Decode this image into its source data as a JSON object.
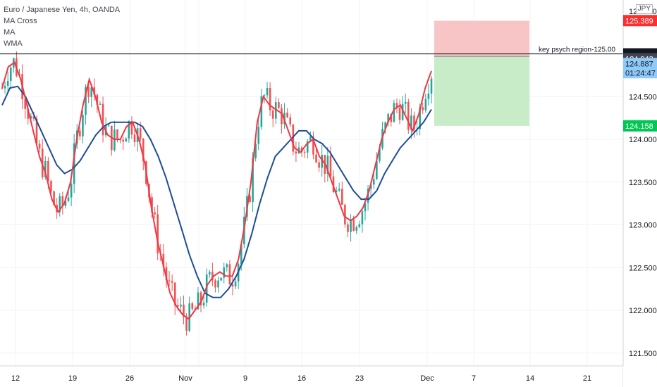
{
  "header": {
    "symbol_line": "Euro / Japanese Yen, 4h, OANDA",
    "indicators": [
      "MA Cross",
      "MA",
      "WMA"
    ]
  },
  "currency_badge": "JPY",
  "colors": {
    "up": "#26a69a",
    "down": "#ef5350",
    "ma_fast": "#f23645",
    "ma_slow": "#1e4c9a",
    "stop_zone": "#f7c5c5",
    "target_zone": "#c8ebc8"
  },
  "chart_data": {
    "type": "candlestick",
    "title": "Euro / Japanese Yen, 4h, OANDA",
    "ylim": [
      121.35,
      125.63
    ],
    "x_ticks": [
      "12",
      "19",
      "26",
      "Nov",
      "2",
      "9",
      "16",
      "23",
      "Dec",
      "7",
      "14",
      "21"
    ],
    "y_ticks": [
      "121.500",
      "122.000",
      "122.500",
      "123.000",
      "123.500",
      "124.000",
      "124.500",
      "125.000"
    ],
    "grid": true,
    "series": [
      {
        "name": "MA Cross fast",
        "kind": "line",
        "values": [
          124.6,
          124.85,
          124.9,
          124.7,
          124.4,
          124.1,
          123.8,
          123.6,
          123.3,
          123.15,
          123.25,
          123.5,
          124.0,
          124.4,
          124.7,
          124.5,
          124.2,
          124.05,
          124.0,
          124.0,
          124.15,
          124.2,
          124.0,
          123.7,
          123.2,
          122.8,
          122.5,
          122.2,
          122.05,
          121.95,
          121.9,
          122.0,
          122.1,
          122.3,
          122.4,
          122.45,
          122.4,
          122.4,
          122.6,
          123.0,
          123.5,
          124.2,
          124.5,
          124.4,
          124.35,
          124.3,
          124.1,
          123.9,
          123.85,
          123.95,
          124.0,
          123.8,
          123.7,
          123.5,
          123.3,
          123.1,
          123.05,
          123.1,
          123.2,
          123.4,
          123.7,
          124.0,
          124.2,
          124.35,
          124.4,
          124.25,
          124.1,
          124.3,
          124.6,
          124.8
        ]
      },
      {
        "name": "MA Cross slow",
        "kind": "line",
        "values": [
          124.4,
          124.6,
          124.62,
          124.5,
          124.3,
          124.1,
          123.9,
          123.7,
          123.6,
          123.65,
          123.75,
          123.9,
          124.05,
          124.15,
          124.2,
          124.2,
          124.2,
          124.2,
          124.15,
          124.0,
          123.8,
          123.55,
          123.25,
          122.95,
          122.65,
          122.4,
          122.2,
          122.15,
          122.15,
          122.25,
          122.4,
          122.6,
          122.9,
          123.25,
          123.55,
          123.8,
          123.9,
          124.0,
          124.1,
          124.1,
          124.0,
          123.95,
          123.85,
          123.7,
          123.55,
          123.4,
          123.3,
          123.3,
          123.4,
          123.6,
          123.75,
          123.9,
          124.0,
          124.1,
          124.2,
          124.35
        ]
      }
    ],
    "annotations": [
      {
        "text": "key psych region-125.00",
        "value": 125.0
      },
      {
        "type": "long-position",
        "entry": 124.971,
        "stop": 125.387,
        "target": 124.158
      }
    ],
    "price_labels": [
      {
        "text": "125.389",
        "value": 125.389,
        "bg": "#ff2e2e",
        "fg": "#ffffff"
      },
      {
        "text": "125.000",
        "value": 125.0,
        "bg": "#131722",
        "fg": "#ffffff"
      },
      {
        "text": "124.971",
        "value": 124.971,
        "bg": "#131722",
        "fg": "#ffffff"
      },
      {
        "text": "124.943",
        "value": 124.943,
        "bg": "#434651",
        "fg": "#ffffff"
      },
      {
        "text": "124.887",
        "value": 124.887,
        "bg": "#90caf9",
        "fg": "#131722"
      },
      {
        "text": "01:24:47",
        "value": 124.78,
        "bg": "#90caf9",
        "fg": "#131722"
      },
      {
        "text": "124.158",
        "value": 124.158,
        "bg": "#00c853",
        "fg": "#ffffff"
      }
    ]
  }
}
